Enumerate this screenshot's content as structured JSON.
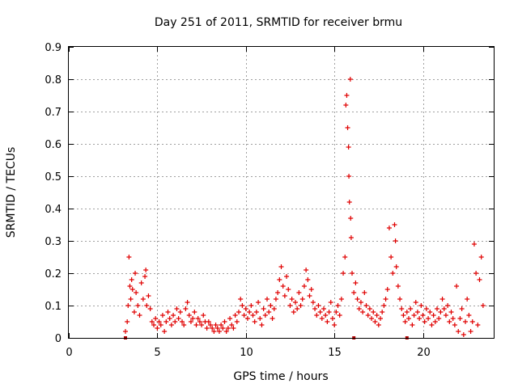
{
  "chart_data": {
    "type": "scatter",
    "title": "Day 251 of 2011, SRMTID for receiver brmu",
    "xlabel": "GPS time / hours",
    "ylabel": "SRMTID / TECUs",
    "xlim": [
      0,
      24
    ],
    "ylim": [
      0,
      0.9
    ],
    "xticks": [
      0,
      5,
      10,
      15,
      20
    ],
    "yticks": [
      0,
      0.1,
      0.2,
      0.3,
      0.4,
      0.5,
      0.6,
      0.7,
      0.8,
      0.9
    ],
    "grid": true,
    "marker": "+",
    "color": "#e00000",
    "series": [
      {
        "name": "SRMTID",
        "points": [
          [
            3.2,
            0.02
          ],
          [
            3.3,
            0.05
          ],
          [
            3.35,
            0.1
          ],
          [
            3.4,
            0.25
          ],
          [
            3.45,
            0.16
          ],
          [
            3.5,
            0.12
          ],
          [
            3.55,
            0.18
          ],
          [
            3.6,
            0.15
          ],
          [
            3.7,
            0.08
          ],
          [
            3.75,
            0.2
          ],
          [
            3.8,
            0.14
          ],
          [
            3.9,
            0.1
          ],
          [
            4.0,
            0.07
          ],
          [
            4.1,
            0.17
          ],
          [
            4.2,
            0.12
          ],
          [
            4.3,
            0.19
          ],
          [
            4.35,
            0.21
          ],
          [
            4.4,
            0.1
          ],
          [
            4.5,
            0.13
          ],
          [
            4.6,
            0.09
          ],
          [
            4.7,
            0.05
          ],
          [
            4.8,
            0.04
          ],
          [
            4.9,
            0.06
          ],
          [
            5.0,
            0.03
          ],
          [
            5.1,
            0.05
          ],
          [
            5.2,
            0.04
          ],
          [
            5.3,
            0.07
          ],
          [
            5.4,
            0.02
          ],
          [
            5.5,
            0.05
          ],
          [
            5.6,
            0.08
          ],
          [
            5.7,
            0.06
          ],
          [
            5.8,
            0.04
          ],
          [
            5.9,
            0.07
          ],
          [
            6.0,
            0.05
          ],
          [
            6.1,
            0.09
          ],
          [
            6.2,
            0.06
          ],
          [
            6.3,
            0.08
          ],
          [
            6.4,
            0.05
          ],
          [
            6.5,
            0.04
          ],
          [
            6.6,
            0.09
          ],
          [
            6.7,
            0.11
          ],
          [
            6.8,
            0.07
          ],
          [
            6.9,
            0.05
          ],
          [
            7.0,
            0.06
          ],
          [
            7.1,
            0.08
          ],
          [
            7.2,
            0.04
          ],
          [
            7.3,
            0.06
          ],
          [
            7.4,
            0.05
          ],
          [
            7.5,
            0.04
          ],
          [
            7.6,
            0.07
          ],
          [
            7.7,
            0.05
          ],
          [
            7.8,
            0.03
          ],
          [
            7.9,
            0.05
          ],
          [
            8.0,
            0.04
          ],
          [
            8.1,
            0.03
          ],
          [
            8.2,
            0.02
          ],
          [
            8.3,
            0.04
          ],
          [
            8.4,
            0.03
          ],
          [
            8.5,
            0.02
          ],
          [
            8.6,
            0.04
          ],
          [
            8.7,
            0.03
          ],
          [
            8.8,
            0.05
          ],
          [
            8.9,
            0.02
          ],
          [
            9.0,
            0.03
          ],
          [
            9.1,
            0.06
          ],
          [
            9.2,
            0.04
          ],
          [
            9.3,
            0.03
          ],
          [
            9.4,
            0.07
          ],
          [
            9.5,
            0.05
          ],
          [
            9.6,
            0.08
          ],
          [
            9.7,
            0.12
          ],
          [
            9.8,
            0.1
          ],
          [
            9.9,
            0.07
          ],
          [
            10.0,
            0.09
          ],
          [
            10.1,
            0.06
          ],
          [
            10.2,
            0.08
          ],
          [
            10.3,
            0.1
          ],
          [
            10.4,
            0.07
          ],
          [
            10.5,
            0.05
          ],
          [
            10.6,
            0.08
          ],
          [
            10.7,
            0.11
          ],
          [
            10.8,
            0.06
          ],
          [
            10.9,
            0.04
          ],
          [
            11.0,
            0.09
          ],
          [
            11.1,
            0.07
          ],
          [
            11.2,
            0.12
          ],
          [
            11.3,
            0.08
          ],
          [
            11.4,
            0.1
          ],
          [
            11.5,
            0.06
          ],
          [
            11.6,
            0.09
          ],
          [
            11.7,
            0.12
          ],
          [
            11.8,
            0.14
          ],
          [
            11.9,
            0.18
          ],
          [
            12.0,
            0.22
          ],
          [
            12.1,
            0.16
          ],
          [
            12.2,
            0.13
          ],
          [
            12.3,
            0.19
          ],
          [
            12.4,
            0.15
          ],
          [
            12.5,
            0.1
          ],
          [
            12.6,
            0.12
          ],
          [
            12.7,
            0.08
          ],
          [
            12.8,
            0.11
          ],
          [
            12.9,
            0.09
          ],
          [
            13.0,
            0.14
          ],
          [
            13.1,
            0.1
          ],
          [
            13.2,
            0.12
          ],
          [
            13.3,
            0.16
          ],
          [
            13.4,
            0.21
          ],
          [
            13.5,
            0.18
          ],
          [
            13.6,
            0.13
          ],
          [
            13.7,
            0.15
          ],
          [
            13.8,
            0.11
          ],
          [
            13.9,
            0.09
          ],
          [
            14.0,
            0.07
          ],
          [
            14.1,
            0.1
          ],
          [
            14.2,
            0.08
          ],
          [
            14.3,
            0.06
          ],
          [
            14.4,
            0.09
          ],
          [
            14.5,
            0.07
          ],
          [
            14.6,
            0.05
          ],
          [
            14.7,
            0.08
          ],
          [
            14.8,
            0.11
          ],
          [
            14.9,
            0.06
          ],
          [
            15.0,
            0.04
          ],
          [
            15.1,
            0.08
          ],
          [
            15.2,
            0.1
          ],
          [
            15.3,
            0.07
          ],
          [
            15.4,
            0.12
          ],
          [
            15.5,
            0.2
          ],
          [
            15.6,
            0.25
          ],
          [
            15.65,
            0.72
          ],
          [
            15.7,
            0.75
          ],
          [
            15.75,
            0.65
          ],
          [
            15.8,
            0.59
          ],
          [
            15.82,
            0.5
          ],
          [
            15.85,
            0.42
          ],
          [
            15.9,
            0.8
          ],
          [
            15.92,
            0.37
          ],
          [
            15.95,
            0.31
          ],
          [
            16.0,
            0.2
          ],
          [
            16.1,
            0.14
          ],
          [
            16.2,
            0.17
          ],
          [
            16.3,
            0.12
          ],
          [
            16.4,
            0.09
          ],
          [
            16.5,
            0.11
          ],
          [
            16.6,
            0.08
          ],
          [
            16.7,
            0.14
          ],
          [
            16.8,
            0.1
          ],
          [
            16.9,
            0.07
          ],
          [
            17.0,
            0.09
          ],
          [
            17.1,
            0.06
          ],
          [
            17.2,
            0.08
          ],
          [
            17.3,
            0.05
          ],
          [
            17.4,
            0.07
          ],
          [
            17.5,
            0.04
          ],
          [
            17.6,
            0.06
          ],
          [
            17.7,
            0.08
          ],
          [
            17.8,
            0.1
          ],
          [
            17.9,
            0.12
          ],
          [
            18.0,
            0.15
          ],
          [
            18.1,
            0.34
          ],
          [
            18.2,
            0.25
          ],
          [
            18.3,
            0.2
          ],
          [
            18.4,
            0.35
          ],
          [
            18.45,
            0.3
          ],
          [
            18.5,
            0.22
          ],
          [
            18.6,
            0.16
          ],
          [
            18.7,
            0.12
          ],
          [
            18.8,
            0.09
          ],
          [
            18.9,
            0.07
          ],
          [
            19.0,
            0.05
          ],
          [
            19.1,
            0.08
          ],
          [
            19.2,
            0.06
          ],
          [
            19.3,
            0.09
          ],
          [
            19.4,
            0.04
          ],
          [
            19.5,
            0.07
          ],
          [
            19.6,
            0.11
          ],
          [
            19.7,
            0.08
          ],
          [
            19.8,
            0.06
          ],
          [
            19.9,
            0.1
          ],
          [
            20.0,
            0.07
          ],
          [
            20.1,
            0.05
          ],
          [
            20.2,
            0.09
          ],
          [
            20.3,
            0.06
          ],
          [
            20.4,
            0.08
          ],
          [
            20.5,
            0.04
          ],
          [
            20.6,
            0.07
          ],
          [
            20.7,
            0.05
          ],
          [
            20.8,
            0.09
          ],
          [
            20.9,
            0.06
          ],
          [
            21.0,
            0.08
          ],
          [
            21.1,
            0.12
          ],
          [
            21.2,
            0.09
          ],
          [
            21.3,
            0.07
          ],
          [
            21.4,
            0.1
          ],
          [
            21.5,
            0.05
          ],
          [
            21.6,
            0.08
          ],
          [
            21.7,
            0.06
          ],
          [
            21.8,
            0.04
          ],
          [
            21.9,
            0.16
          ],
          [
            22.0,
            0.02
          ],
          [
            22.1,
            0.06
          ],
          [
            22.2,
            0.09
          ],
          [
            22.3,
            0.01
          ],
          [
            22.4,
            0.05
          ],
          [
            22.5,
            0.12
          ],
          [
            22.6,
            0.07
          ],
          [
            22.7,
            0.02
          ],
          [
            22.8,
            0.05
          ],
          [
            22.9,
            0.29
          ],
          [
            23.0,
            0.2
          ],
          [
            23.1,
            0.04
          ],
          [
            23.2,
            0.18
          ],
          [
            23.3,
            0.25
          ],
          [
            23.4,
            0.1
          ]
        ]
      }
    ],
    "rug_x": [
      3.2,
      16.1,
      19.1
    ]
  }
}
